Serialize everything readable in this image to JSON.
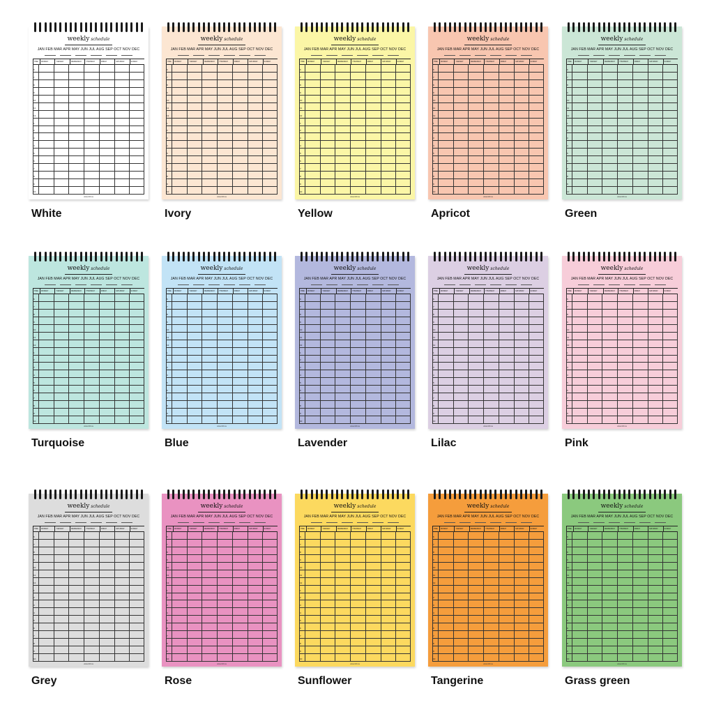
{
  "page": {
    "title_word": "weekly",
    "title_sub": "schedule",
    "months": "JAN FEB MAR APR MAY JUN JUL AUG SEP OCT NOV DEC",
    "header": [
      "TIME",
      "MONDAY",
      "TUESDAY",
      "WEDNESDAY",
      "THURSDAY",
      "FRIDAY",
      "SATURDAY",
      "SUNDAY"
    ],
    "times": [
      "6",
      "7",
      "8",
      "9",
      "10",
      "11",
      "12",
      "1",
      "2",
      "3",
      "4",
      "5",
      "6",
      "7",
      "8",
      "9",
      "10"
    ],
    "footer": "www.100.ca"
  },
  "pads": [
    {
      "label": "White",
      "color": "#ffffff"
    },
    {
      "label": "Ivory",
      "color": "#fce6d2"
    },
    {
      "label": "Yellow",
      "color": "#fbf6a6"
    },
    {
      "label": "Apricot",
      "color": "#f8c6b0"
    },
    {
      "label": "Green",
      "color": "#cbe6d6"
    },
    {
      "label": "Turquoise",
      "color": "#bde6df"
    },
    {
      "label": "Blue",
      "color": "#c2e3f6"
    },
    {
      "label": "Lavender",
      "color": "#b3b8de"
    },
    {
      "label": "Lilac",
      "color": "#dccfe3"
    },
    {
      "label": "Pink",
      "color": "#f7cdd9"
    },
    {
      "label": "Grey",
      "color": "#dddddd"
    },
    {
      "label": "Rose",
      "color": "#e992c1"
    },
    {
      "label": "Sunflower",
      "color": "#fcd95f"
    },
    {
      "label": "Tangerine",
      "color": "#f59d3c"
    },
    {
      "label": "Grass green",
      "color": "#8bc97e"
    }
  ]
}
